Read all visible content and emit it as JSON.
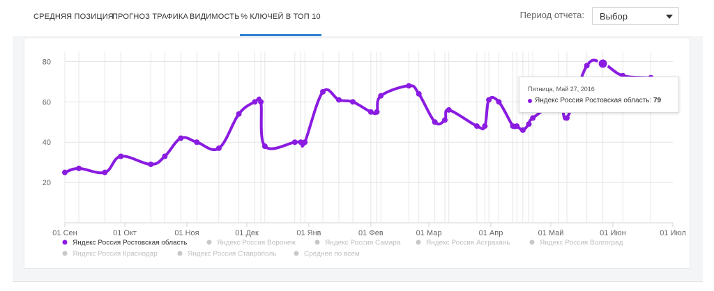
{
  "tabs": [
    {
      "label": "Средняя позиция"
    },
    {
      "label": "Прогноз трафика"
    },
    {
      "label": "Видимость"
    },
    {
      "label": "% ключей в ТОП 10"
    }
  ],
  "active_tab": 3,
  "period": {
    "label": "Период отчета:",
    "value": "Выбор"
  },
  "tooltip": {
    "date": "Пятница, Май 27, 2016",
    "series": "Яндекс Россия Ростовская область",
    "value": "79"
  },
  "colors": {
    "series": "#8a1be0",
    "inactive": "#c8c8c8",
    "accent": "#2f80d1"
  },
  "chart_data": {
    "type": "line",
    "ylim": [
      0,
      85
    ],
    "yticks": [
      20,
      40,
      60,
      80
    ],
    "x_ticks": [
      "01 Сен",
      "01 Окт",
      "01 Ноя",
      "01 Дек",
      "01 Янв",
      "01 Фев",
      "01 Мар",
      "01 Апр",
      "01 Май",
      "01 Июн",
      "01 Июл"
    ],
    "series": [
      {
        "name": "Яндекс Россия Ростовская область",
        "active": true,
        "points": [
          [
            "2015-09-01",
            25
          ],
          [
            "2015-09-08",
            27
          ],
          [
            "2015-09-21",
            25
          ],
          [
            "2015-09-29",
            33
          ],
          [
            "2015-10-14",
            29
          ],
          [
            "2015-10-21",
            33
          ],
          [
            "2015-10-29",
            42
          ],
          [
            "2015-11-06",
            40
          ],
          [
            "2015-11-17",
            37
          ],
          [
            "2015-11-27",
            54
          ],
          [
            "2015-12-05",
            60
          ],
          [
            "2015-12-08",
            60
          ],
          [
            "2015-12-10",
            38
          ],
          [
            "2015-12-25",
            40
          ],
          [
            "2015-12-28",
            40
          ],
          [
            "2015-12-30",
            40
          ],
          [
            "2016-01-08",
            65
          ],
          [
            "2016-01-16",
            61
          ],
          [
            "2016-01-23",
            60
          ],
          [
            "2016-02-01",
            55
          ],
          [
            "2016-02-04",
            55
          ],
          [
            "2016-02-06",
            63
          ],
          [
            "2016-02-20",
            68
          ],
          [
            "2016-02-25",
            64
          ],
          [
            "2016-03-04",
            50
          ],
          [
            "2016-03-09",
            51
          ],
          [
            "2016-03-11",
            56
          ],
          [
            "2016-03-25",
            48
          ],
          [
            "2016-03-29",
            48
          ],
          [
            "2016-03-31",
            61
          ],
          [
            "2016-04-05",
            60
          ],
          [
            "2016-04-12",
            48
          ],
          [
            "2016-04-14",
            48
          ],
          [
            "2016-04-17",
            46
          ],
          [
            "2016-04-20",
            49
          ],
          [
            "2016-04-22",
            52
          ],
          [
            "2016-05-05",
            60
          ],
          [
            "2016-05-09",
            52
          ],
          [
            "2016-05-19",
            78
          ],
          [
            "2016-05-27",
            79
          ],
          [
            "2016-06-06",
            73
          ],
          [
            "2016-06-20",
            72
          ]
        ]
      },
      {
        "name": "Яндекс Россия Воронеж",
        "active": false
      },
      {
        "name": "Яндекс Россия Самара",
        "active": false
      },
      {
        "name": "Яндекс Россия Астрахань",
        "active": false
      },
      {
        "name": "Яндекс Россия Волгоград",
        "active": false
      },
      {
        "name": "Яндекс Россия Краснодар",
        "active": false
      },
      {
        "name": "Яндекс Россия Ставрополь",
        "active": false
      },
      {
        "name": "Среднее по всем",
        "active": false
      }
    ],
    "highlight": {
      "x": "2016-05-27",
      "y": 79
    }
  }
}
